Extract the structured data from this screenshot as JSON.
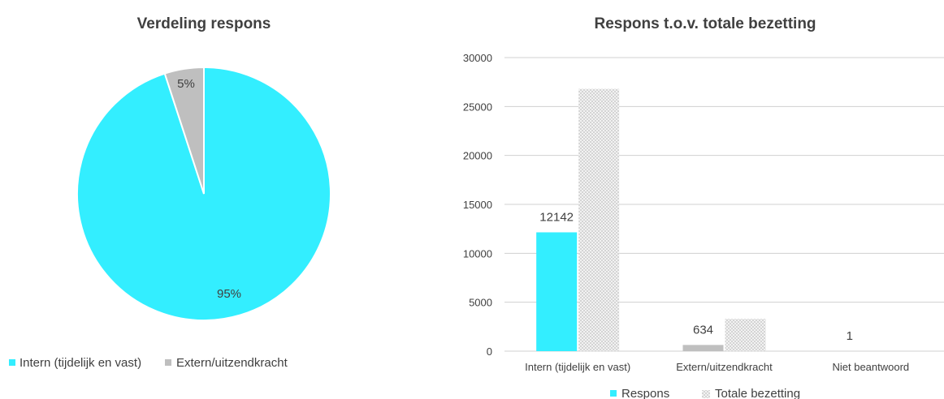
{
  "colors": {
    "primary": "#33eeff",
    "secondary": "#bfbfbf",
    "hatch": "#d9d9d9",
    "axis": "#d0d0d0",
    "text": "#404040"
  },
  "chart_data": [
    {
      "type": "pie",
      "title": "Verdeling respons",
      "categories": [
        "Intern (tijdelijk en vast)",
        "Extern/uitzendkracht"
      ],
      "values": [
        95,
        5
      ],
      "labels": [
        "95%",
        "5%"
      ],
      "legend": "bottom-left"
    },
    {
      "type": "bar",
      "title": "Respons t.o.v. totale bezetting",
      "categories": [
        "Intern (tijdelijk en vast)",
        "Extern/uitzendkracht",
        "Niet beantwoord"
      ],
      "series": [
        {
          "name": "Respons",
          "values": [
            12142,
            634,
            1
          ],
          "data_labels": [
            "12142",
            "634",
            "1"
          ]
        },
        {
          "name": "Totale bezetting",
          "values": [
            26800,
            3300,
            0
          ]
        }
      ],
      "ylim": [
        0,
        30000
      ],
      "yticks": [
        "0",
        "5000",
        "10000",
        "15000",
        "20000",
        "25000",
        "30000"
      ],
      "grid": true,
      "legend": "bottom-center"
    }
  ]
}
